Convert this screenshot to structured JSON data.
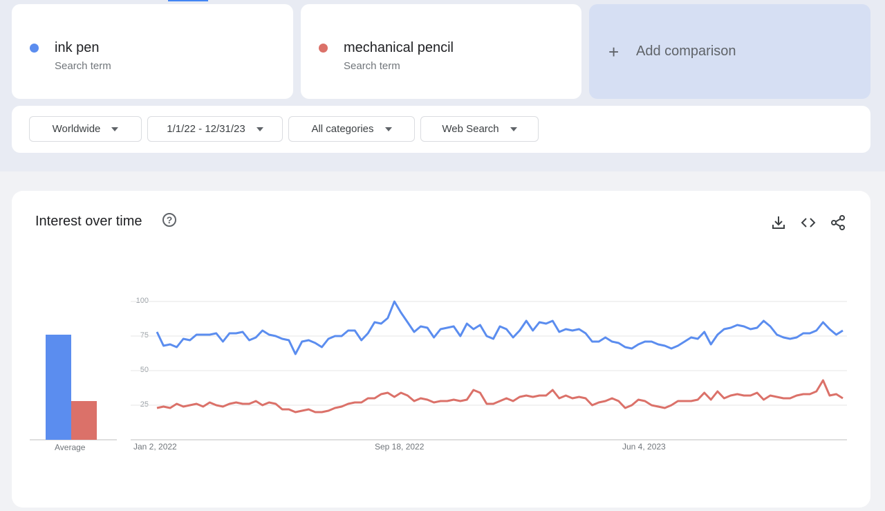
{
  "terms": [
    {
      "name": "ink pen",
      "sub": "Search term",
      "color": "#5b8def"
    },
    {
      "name": "mechanical pencil",
      "sub": "Search term",
      "color": "#db7169"
    }
  ],
  "add_comparison": "Add comparison",
  "filters": [
    "Worldwide",
    "1/1/22 - 12/31/23",
    "All categories",
    "Web Search"
  ],
  "panel": {
    "title": "Interest over time",
    "average_label": "Average"
  },
  "icons": [
    "help-circle-icon",
    "download-icon",
    "embed-code-icon",
    "share-icon"
  ],
  "chart_data": {
    "type": "line",
    "ylim": [
      0,
      100
    ],
    "yticks": [
      "100",
      "75",
      "50",
      "25"
    ],
    "xtick_labels": [
      "Jan 2, 2022",
      "Sep 18, 2022",
      "Jun 4, 2023"
    ],
    "x_start": "Jan 2, 2022",
    "x_interval": "weekly",
    "grid": true,
    "averages": [
      76,
      28
    ],
    "series": [
      {
        "name": "ink pen",
        "color": "#5b8def",
        "values": [
          78,
          68,
          69,
          67,
          73,
          72,
          76,
          76,
          76,
          77,
          71,
          77,
          77,
          78,
          72,
          74,
          79,
          76,
          75,
          73,
          72,
          62,
          71,
          72,
          70,
          67,
          73,
          75,
          75,
          79,
          79,
          72,
          77,
          85,
          84,
          88,
          100,
          92,
          85,
          78,
          82,
          81,
          74,
          80,
          81,
          82,
          75,
          84,
          80,
          83,
          75,
          73,
          82,
          80,
          74,
          79,
          86,
          79,
          85,
          84,
          86,
          78,
          80,
          79,
          80,
          77,
          71,
          71,
          74,
          71,
          70,
          67,
          66,
          69,
          71,
          71,
          69,
          68,
          66,
          68,
          71,
          74,
          73,
          78,
          69,
          76,
          80,
          81,
          83,
          82,
          80,
          81,
          86,
          82,
          76,
          74,
          73,
          74,
          77,
          77,
          79,
          85,
          80,
          76,
          79
        ]
      },
      {
        "name": "mechanical pencil",
        "color": "#db7169",
        "values": [
          23,
          24,
          23,
          26,
          24,
          25,
          26,
          24,
          27,
          25,
          24,
          26,
          27,
          26,
          26,
          28,
          25,
          27,
          26,
          22,
          22,
          20,
          21,
          22,
          20,
          20,
          21,
          23,
          24,
          26,
          27,
          27,
          30,
          30,
          33,
          34,
          31,
          34,
          32,
          28,
          30,
          29,
          27,
          28,
          28,
          29,
          28,
          29,
          36,
          34,
          26,
          26,
          28,
          30,
          28,
          31,
          32,
          31,
          32,
          32,
          36,
          30,
          32,
          30,
          31,
          30,
          25,
          27,
          28,
          30,
          28,
          23,
          25,
          29,
          28,
          25,
          24,
          23,
          25,
          28,
          28,
          28,
          29,
          34,
          29,
          35,
          30,
          32,
          33,
          32,
          32,
          34,
          29,
          32,
          31,
          30,
          30,
          32,
          33,
          33,
          35,
          43,
          32,
          33,
          30
        ]
      }
    ]
  }
}
